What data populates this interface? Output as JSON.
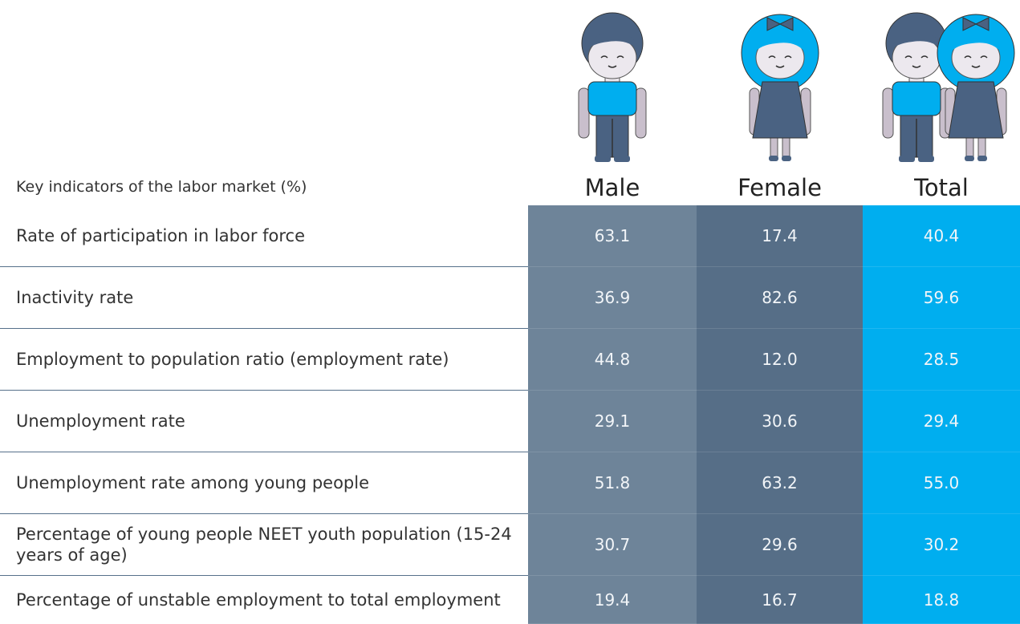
{
  "table": {
    "header": [
      "Key indicators of the labor market (%)",
      "Male",
      "Female",
      "Total"
    ],
    "rows": [
      [
        "Rate of participation in labor force",
        "63.1",
        "17.4",
        "40.4"
      ],
      [
        "Inactivity rate",
        "36.9",
        "82.6",
        "59.6"
      ],
      [
        "Employment to population ratio (employment rate)",
        "44.8",
        "12.0",
        "28.5"
      ],
      [
        "Unemployment rate",
        "29.1",
        "30.6",
        "29.4"
      ],
      [
        "Unemployment rate among young people",
        "51.8",
        "63.2",
        "55.0"
      ],
      [
        "Percentage of young people NEET youth population (15-24 years of age)",
        "30.7",
        "29.6",
        "30.2"
      ],
      [
        "Percentage of unstable employment to total employment",
        "19.4",
        "16.7",
        "18.8"
      ]
    ]
  }
}
